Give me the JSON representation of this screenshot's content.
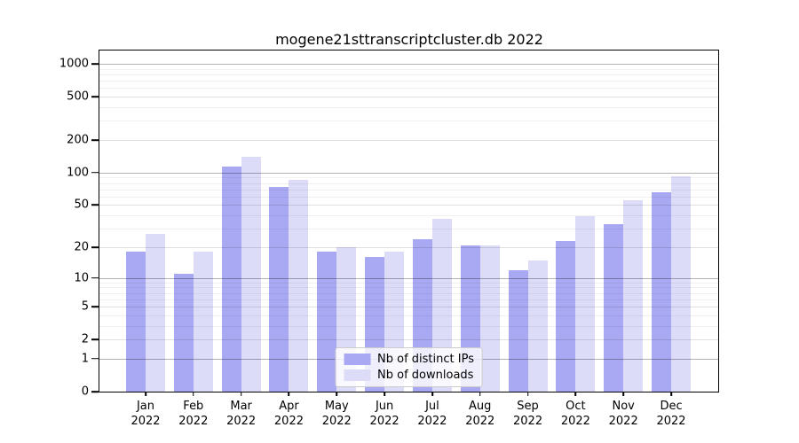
{
  "figure": {
    "background": "#ffffff"
  },
  "chart_data": {
    "type": "bar",
    "title": "mogene21sttranscriptcluster.db 2022",
    "year_label": "2022",
    "categories": [
      "Jan",
      "Feb",
      "Mar",
      "Apr",
      "May",
      "Jun",
      "Jul",
      "Aug",
      "Sep",
      "Oct",
      "Nov",
      "Dec"
    ],
    "series": [
      {
        "name": "Nb of distinct IPs",
        "color": "#a8a8f3",
        "values": [
          18,
          11,
          114,
          74,
          18,
          16,
          24,
          21,
          12,
          23,
          33,
          66
        ]
      },
      {
        "name": "Nb of downloads",
        "color": "#dcdcf8",
        "values": [
          27,
          18,
          140,
          86,
          20,
          18,
          37,
          21,
          15,
          39,
          55,
          93
        ]
      }
    ],
    "xlabel": "",
    "ylabel": "",
    "y_ticks": [
      0,
      1,
      2,
      5,
      10,
      20,
      50,
      100,
      200,
      500,
      1000
    ],
    "y_minor_ticks": [
      3,
      4,
      6,
      7,
      8,
      9,
      30,
      40,
      60,
      70,
      80,
      90,
      300,
      400,
      600,
      700,
      800,
      900
    ],
    "scale": "log1p",
    "ylim": [
      0,
      1326
    ],
    "grid": true,
    "legend_position": "bottom-center",
    "colors": {
      "axis": "#000000",
      "grid_major": "rgba(0,0,0,0.30)",
      "grid_mid": "rgba(0,0,0,0.12)",
      "grid_minor": "rgba(0,0,0,0.055)"
    }
  }
}
